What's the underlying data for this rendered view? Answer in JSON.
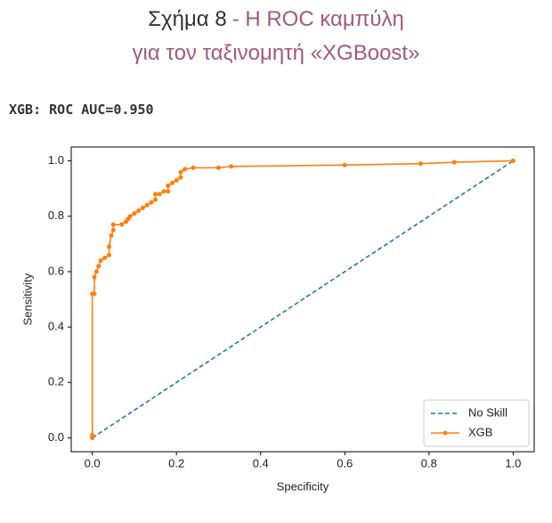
{
  "caption": {
    "figure_label": "Σχήμα 8",
    "title_line1": "- Η ROC καμπύλη",
    "title_line2": "για τον ταξινομητή «XGBoost»"
  },
  "chart_data": {
    "type": "line",
    "heading": "XGB: ROC AUC=0.950",
    "xlabel": "Specificity",
    "ylabel": "Sensitivity",
    "xlim": [
      -0.05,
      1.05
    ],
    "ylim": [
      -0.05,
      1.05
    ],
    "xticks": [
      {
        "value": 0,
        "label": "0.0"
      },
      0.2,
      0.4,
      0.6,
      0.8,
      {
        "value": 1,
        "label": "1.0"
      }
    ],
    "yticks": [
      {
        "value": 0,
        "label": "0.0"
      },
      0.2,
      0.4,
      0.6,
      0.8,
      {
        "value": 1,
        "label": "1.0"
      }
    ],
    "legend": "lower right",
    "series": [
      {
        "name": "No Skill",
        "color": "#1f77b4",
        "style": "dashed",
        "x": [
          0,
          1
        ],
        "values": [
          0,
          1
        ]
      },
      {
        "name": "XGB",
        "color": "#ff7f0e",
        "style": "solid",
        "marker": true,
        "x": [
          0,
          0,
          0,
          0.005,
          0.005,
          0.01,
          0.015,
          0.02,
          0.03,
          0.04,
          0.04,
          0.045,
          0.05,
          0.05,
          0.07,
          0.08,
          0.085,
          0.09,
          0.1,
          0.11,
          0.12,
          0.13,
          0.14,
          0.15,
          0.15,
          0.16,
          0.17,
          0.18,
          0.18,
          0.19,
          0.2,
          0.21,
          0.21,
          0.22,
          0.24,
          0.3,
          0.33,
          0.6,
          0.78,
          0.86,
          1.0
        ],
        "values": [
          0,
          0.01,
          0.52,
          0.52,
          0.58,
          0.6,
          0.62,
          0.64,
          0.65,
          0.66,
          0.69,
          0.73,
          0.75,
          0.77,
          0.77,
          0.78,
          0.79,
          0.8,
          0.81,
          0.82,
          0.83,
          0.84,
          0.85,
          0.86,
          0.88,
          0.88,
          0.89,
          0.89,
          0.91,
          0.92,
          0.93,
          0.94,
          0.96,
          0.97,
          0.975,
          0.975,
          0.98,
          0.985,
          0.99,
          0.995,
          1.0
        ]
      }
    ]
  }
}
